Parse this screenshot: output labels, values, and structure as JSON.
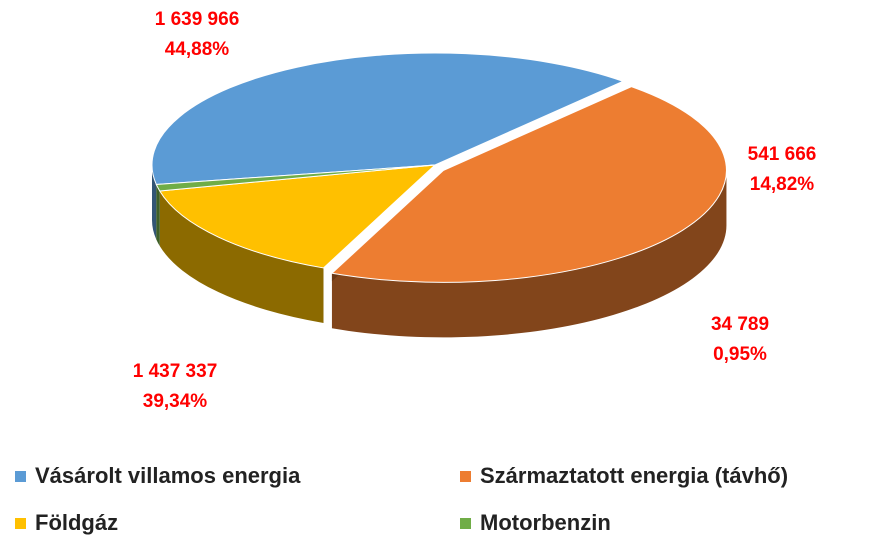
{
  "chart_data": {
    "type": "pie",
    "categories": [
      "Vásárolt villamos energia",
      "Származtatott energia (távhő)",
      "Földgáz",
      "Motorbenzin"
    ],
    "values": [
      1437337,
      1639966,
      541666,
      34789
    ],
    "value_labels": [
      "1 437 337",
      "1 639 966",
      "541 666",
      "34 789"
    ],
    "percentages": [
      39.34,
      44.88,
      14.82,
      0.95
    ],
    "percentage_labels": [
      "39,34%",
      "44,88%",
      "14,82%",
      "0,95%"
    ],
    "colors": [
      "#5b9bd5",
      "#ed7d31",
      "#ffc000",
      "#70ad47"
    ],
    "legend": "bottom"
  }
}
